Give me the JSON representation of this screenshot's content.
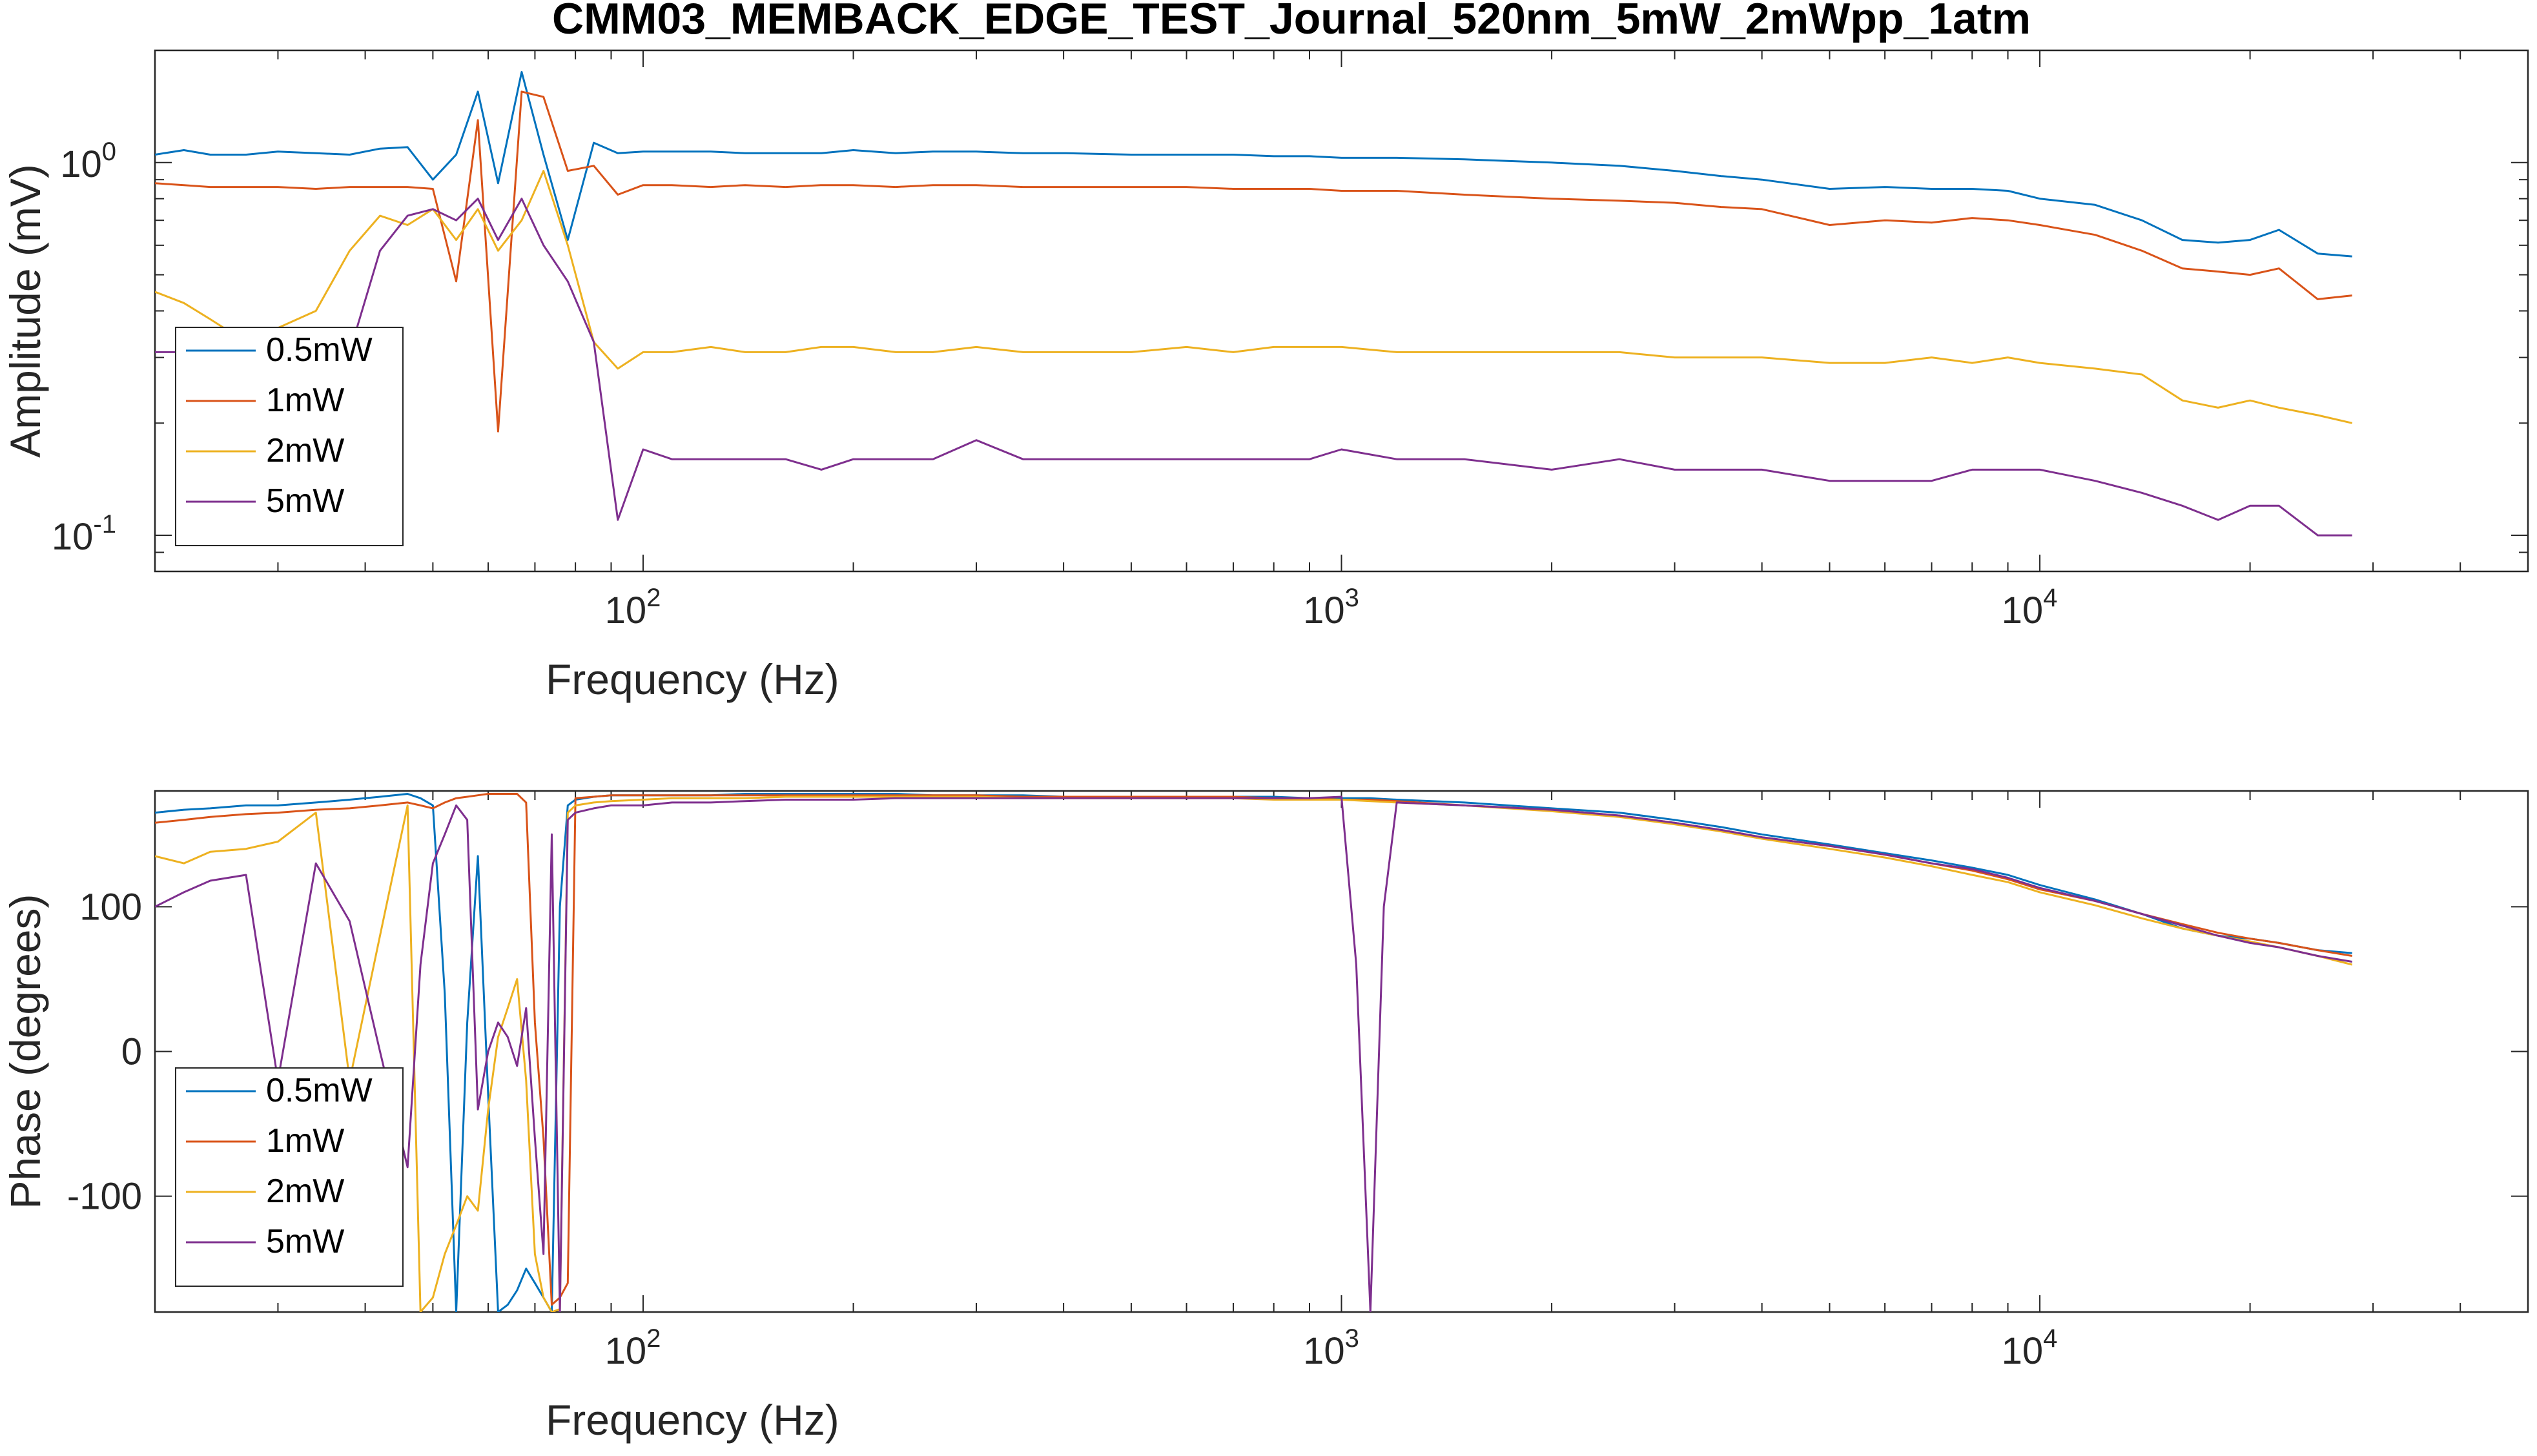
{
  "chart_data": [
    {
      "type": "line",
      "title": "CMM03_MEMBACK_EDGE_TEST_Journal_520nm_5mW_2mWpp_1atm",
      "xlabel": "Frequency (Hz)",
      "ylabel": "Amplitude (mV)",
      "xscale": "log",
      "yscale": "log",
      "xlim": [
        20,
        50000
      ],
      "ylim": [
        0.08,
        2.0
      ],
      "xticks": [
        100,
        1000,
        10000
      ],
      "xtick_labels": [
        [
          "10",
          "2"
        ],
        [
          "10",
          "3"
        ],
        [
          "10",
          "4"
        ]
      ],
      "yticks": [
        0.1,
        1
      ],
      "ytick_labels": [
        [
          "10",
          "-1"
        ],
        [
          "10",
          "0"
        ]
      ],
      "grid": false,
      "legend": "bottom-left",
      "series": [
        {
          "name": "0.5mW",
          "color": "#0072BD",
          "x": [
            20,
            22,
            24,
            27,
            30,
            34,
            38,
            42,
            46,
            50,
            54,
            58,
            62,
            67,
            72,
            78,
            85,
            92,
            100,
            110,
            125,
            140,
            160,
            180,
            200,
            230,
            260,
            300,
            350,
            400,
            500,
            600,
            700,
            800,
            900,
            1000,
            1200,
            1500,
            2000,
            2500,
            3000,
            3500,
            4000,
            5000,
            6000,
            7000,
            8000,
            9000,
            10000,
            12000,
            14000,
            16000,
            18000,
            20000,
            22000,
            25000,
            28000
          ],
          "y": [
            1.05,
            1.08,
            1.05,
            1.05,
            1.07,
            1.06,
            1.05,
            1.09,
            1.1,
            0.9,
            1.05,
            1.55,
            0.88,
            1.75,
            1.05,
            0.62,
            1.13,
            1.06,
            1.07,
            1.07,
            1.07,
            1.06,
            1.06,
            1.06,
            1.08,
            1.06,
            1.07,
            1.07,
            1.06,
            1.06,
            1.05,
            1.05,
            1.05,
            1.04,
            1.04,
            1.03,
            1.03,
            1.02,
            1.0,
            0.98,
            0.95,
            0.92,
            0.9,
            0.85,
            0.86,
            0.85,
            0.85,
            0.84,
            0.8,
            0.77,
            0.7,
            0.62,
            0.61,
            0.62,
            0.66,
            0.57,
            0.56
          ]
        },
        {
          "name": "1mW",
          "color": "#D95319",
          "x": [
            20,
            22,
            24,
            27,
            30,
            34,
            38,
            42,
            46,
            50,
            54,
            58,
            62,
            67,
            72,
            78,
            85,
            92,
            100,
            110,
            125,
            140,
            160,
            180,
            200,
            230,
            260,
            300,
            350,
            400,
            500,
            600,
            700,
            800,
            900,
            1000,
            1200,
            1500,
            2000,
            2500,
            3000,
            3500,
            4000,
            5000,
            6000,
            7000,
            8000,
            9000,
            10000,
            12000,
            14000,
            16000,
            18000,
            20000,
            22000,
            25000,
            28000
          ],
          "y": [
            0.88,
            0.87,
            0.86,
            0.86,
            0.86,
            0.85,
            0.86,
            0.86,
            0.86,
            0.85,
            0.48,
            1.3,
            0.19,
            1.55,
            1.5,
            0.95,
            0.98,
            0.82,
            0.87,
            0.87,
            0.86,
            0.87,
            0.86,
            0.87,
            0.87,
            0.86,
            0.87,
            0.87,
            0.86,
            0.86,
            0.86,
            0.86,
            0.85,
            0.85,
            0.85,
            0.84,
            0.84,
            0.82,
            0.8,
            0.79,
            0.78,
            0.76,
            0.75,
            0.68,
            0.7,
            0.69,
            0.71,
            0.7,
            0.68,
            0.64,
            0.58,
            0.52,
            0.51,
            0.5,
            0.52,
            0.43,
            0.44
          ]
        },
        {
          "name": "2mW",
          "color": "#EDB120",
          "x": [
            20,
            22,
            24,
            27,
            30,
            34,
            38,
            42,
            46,
            50,
            54,
            58,
            62,
            67,
            72,
            78,
            85,
            92,
            100,
            110,
            125,
            140,
            160,
            180,
            200,
            230,
            260,
            300,
            350,
            400,
            500,
            600,
            700,
            800,
            900,
            1000,
            1200,
            1500,
            2000,
            2500,
            3000,
            3500,
            4000,
            5000,
            6000,
            7000,
            8000,
            9000,
            10000,
            12000,
            14000,
            16000,
            18000,
            20000,
            22000,
            25000,
            28000
          ],
          "y": [
            0.45,
            0.42,
            0.38,
            0.33,
            0.36,
            0.4,
            0.58,
            0.72,
            0.68,
            0.75,
            0.62,
            0.75,
            0.58,
            0.7,
            0.95,
            0.6,
            0.33,
            0.28,
            0.31,
            0.31,
            0.32,
            0.31,
            0.31,
            0.32,
            0.32,
            0.31,
            0.31,
            0.32,
            0.31,
            0.31,
            0.31,
            0.32,
            0.31,
            0.32,
            0.32,
            0.32,
            0.31,
            0.31,
            0.31,
            0.31,
            0.3,
            0.3,
            0.3,
            0.29,
            0.29,
            0.3,
            0.29,
            0.3,
            0.29,
            0.28,
            0.27,
            0.23,
            0.22,
            0.23,
            0.22,
            0.21,
            0.2
          ]
        },
        {
          "name": "5mW",
          "color": "#7E2F8E",
          "x": [
            20,
            22,
            24,
            27,
            30,
            34,
            38,
            42,
            46,
            50,
            54,
            58,
            62,
            67,
            72,
            78,
            85,
            92,
            100,
            110,
            125,
            140,
            160,
            180,
            200,
            230,
            260,
            300,
            350,
            400,
            500,
            600,
            700,
            800,
            900,
            1000,
            1200,
            1500,
            2000,
            2500,
            3000,
            3500,
            4000,
            5000,
            6000,
            7000,
            8000,
            9000,
            10000,
            12000,
            14000,
            16000,
            18000,
            20000,
            22000,
            25000,
            28000
          ],
          "y": [
            0.31,
            0.31,
            0.31,
            0.31,
            0.31,
            0.31,
            0.31,
            0.58,
            0.72,
            0.75,
            0.7,
            0.8,
            0.62,
            0.8,
            0.6,
            0.48,
            0.33,
            0.11,
            0.17,
            0.16,
            0.16,
            0.16,
            0.16,
            0.15,
            0.16,
            0.16,
            0.16,
            0.18,
            0.16,
            0.16,
            0.16,
            0.16,
            0.16,
            0.16,
            0.16,
            0.17,
            0.16,
            0.16,
            0.15,
            0.16,
            0.15,
            0.15,
            0.15,
            0.14,
            0.14,
            0.14,
            0.15,
            0.15,
            0.15,
            0.14,
            0.13,
            0.12,
            0.11,
            0.12,
            0.12,
            0.1,
            0.1
          ]
        }
      ]
    },
    {
      "type": "line",
      "title": "",
      "xlabel": "Frequency (Hz)",
      "ylabel": "Phase (degrees)",
      "xscale": "log",
      "yscale": "linear",
      "xlim": [
        20,
        50000
      ],
      "ylim": [
        -180,
        180
      ],
      "xticks": [
        100,
        1000,
        10000
      ],
      "xtick_labels": [
        [
          "10",
          "2"
        ],
        [
          "10",
          "3"
        ],
        [
          "10",
          "4"
        ]
      ],
      "yticks": [
        -100,
        0,
        100
      ],
      "ytick_labels": [
        "-100",
        "0",
        "100"
      ],
      "grid": false,
      "legend": "bottom-left",
      "series": [
        {
          "name": "0.5mW",
          "color": "#0072BD",
          "x": [
            20,
            22,
            24,
            27,
            30,
            34,
            38,
            42,
            46,
            48,
            50,
            52,
            54,
            56,
            58,
            60,
            62,
            64,
            66,
            68,
            70,
            72,
            74,
            76,
            78,
            80,
            85,
            90,
            100,
            110,
            125,
            140,
            160,
            180,
            200,
            230,
            260,
            300,
            350,
            400,
            500,
            600,
            700,
            800,
            900,
            1000,
            1100,
            1200,
            1500,
            2000,
            2500,
            3000,
            3500,
            4000,
            5000,
            6000,
            7000,
            8000,
            9000,
            10000,
            12000,
            14000,
            16000,
            18000,
            20000,
            22000,
            25000,
            28000
          ],
          "y": [
            165,
            167,
            168,
            170,
            170,
            172,
            174,
            176,
            178,
            175,
            170,
            40,
            -180,
            20,
            135,
            -30,
            -180,
            -175,
            -165,
            -150,
            -160,
            -170,
            -180,
            100,
            170,
            174,
            176,
            177,
            177,
            177,
            177,
            178,
            178,
            178,
            178,
            178,
            177,
            177,
            177,
            176,
            176,
            176,
            176,
            176,
            175,
            175,
            175,
            174,
            172,
            168,
            165,
            160,
            155,
            150,
            143,
            137,
            132,
            127,
            122,
            115,
            105,
            95,
            85,
            80,
            78,
            75,
            70,
            68
          ]
        },
        {
          "name": "1mW",
          "color": "#D95319",
          "x": [
            20,
            22,
            24,
            27,
            30,
            34,
            38,
            42,
            46,
            48,
            50,
            52,
            54,
            56,
            58,
            60,
            62,
            64,
            66,
            68,
            70,
            72,
            74,
            76,
            78,
            80,
            85,
            90,
            100,
            110,
            125,
            140,
            160,
            180,
            200,
            230,
            260,
            300,
            350,
            400,
            500,
            600,
            700,
            800,
            900,
            1000,
            1100,
            1200,
            1500,
            2000,
            2500,
            3000,
            3500,
            4000,
            5000,
            6000,
            7000,
            8000,
            9000,
            10000,
            12000,
            14000,
            16000,
            18000,
            20000,
            22000,
            25000,
            28000
          ],
          "y": [
            158,
            160,
            162,
            164,
            165,
            167,
            168,
            170,
            172,
            170,
            168,
            172,
            175,
            176,
            177,
            178,
            178,
            178,
            178,
            172,
            20,
            -60,
            -175,
            -170,
            -160,
            175,
            176,
            177,
            177,
            177,
            177,
            177,
            177,
            177,
            177,
            177,
            177,
            177,
            176,
            176,
            176,
            176,
            176,
            175,
            175,
            174,
            174,
            173,
            170,
            167,
            163,
            158,
            153,
            148,
            142,
            136,
            130,
            125,
            119,
            112,
            104,
            95,
            88,
            82,
            78,
            75,
            70,
            66
          ]
        },
        {
          "name": "2mW",
          "color": "#EDB120",
          "x": [
            20,
            22,
            24,
            27,
            30,
            34,
            38,
            42,
            46,
            48,
            50,
            52,
            54,
            56,
            58,
            60,
            62,
            64,
            66,
            68,
            70,
            72,
            74,
            76,
            78,
            80,
            85,
            90,
            100,
            110,
            125,
            140,
            160,
            180,
            200,
            230,
            260,
            300,
            350,
            400,
            500,
            600,
            700,
            800,
            900,
            1000,
            1100,
            1200,
            1500,
            2000,
            2500,
            3000,
            3500,
            4000,
            5000,
            6000,
            7000,
            8000,
            9000,
            10000,
            12000,
            14000,
            16000,
            18000,
            20000,
            22000,
            25000,
            28000
          ],
          "y": [
            135,
            130,
            138,
            140,
            145,
            165,
            -20,
            80,
            170,
            -180,
            -170,
            -140,
            -120,
            -100,
            -110,
            -40,
            10,
            30,
            50,
            -20,
            -140,
            -170,
            -180,
            -178,
            165,
            170,
            172,
            173,
            174,
            175,
            175,
            175,
            176,
            176,
            176,
            176,
            176,
            176,
            175,
            175,
            175,
            175,
            175,
            174,
            174,
            174,
            173,
            172,
            170,
            166,
            162,
            157,
            152,
            147,
            140,
            134,
            128,
            122,
            117,
            110,
            101,
            92,
            85,
            80,
            76,
            72,
            66,
            60
          ]
        },
        {
          "name": "5mW",
          "color": "#7E2F8E",
          "x": [
            20,
            22,
            24,
            27,
            30,
            34,
            38,
            42,
            46,
            48,
            50,
            52,
            54,
            56,
            58,
            60,
            62,
            64,
            66,
            68,
            70,
            72,
            74,
            76,
            78,
            80,
            85,
            90,
            100,
            110,
            125,
            140,
            160,
            180,
            200,
            230,
            260,
            300,
            350,
            400,
            500,
            600,
            700,
            800,
            900,
            1000,
            1050,
            1100,
            1150,
            1200,
            1500,
            2000,
            2500,
            3000,
            3500,
            4000,
            5000,
            6000,
            7000,
            8000,
            9000,
            10000,
            12000,
            14000,
            16000,
            18000,
            20000,
            22000,
            25000,
            28000
          ],
          "y": [
            100,
            110,
            118,
            122,
            -20,
            130,
            90,
            0,
            -80,
            60,
            130,
            150,
            170,
            160,
            -40,
            0,
            20,
            10,
            -10,
            30,
            -60,
            -140,
            150,
            -180,
            160,
            165,
            168,
            170,
            170,
            172,
            172,
            173,
            174,
            174,
            174,
            175,
            175,
            175,
            175,
            175,
            175,
            175,
            175,
            175,
            175,
            176,
            60,
            -180,
            100,
            172,
            170,
            167,
            163,
            158,
            153,
            148,
            142,
            136,
            130,
            126,
            120,
            113,
            104,
            95,
            87,
            80,
            75,
            72,
            66,
            62
          ]
        }
      ]
    }
  ]
}
